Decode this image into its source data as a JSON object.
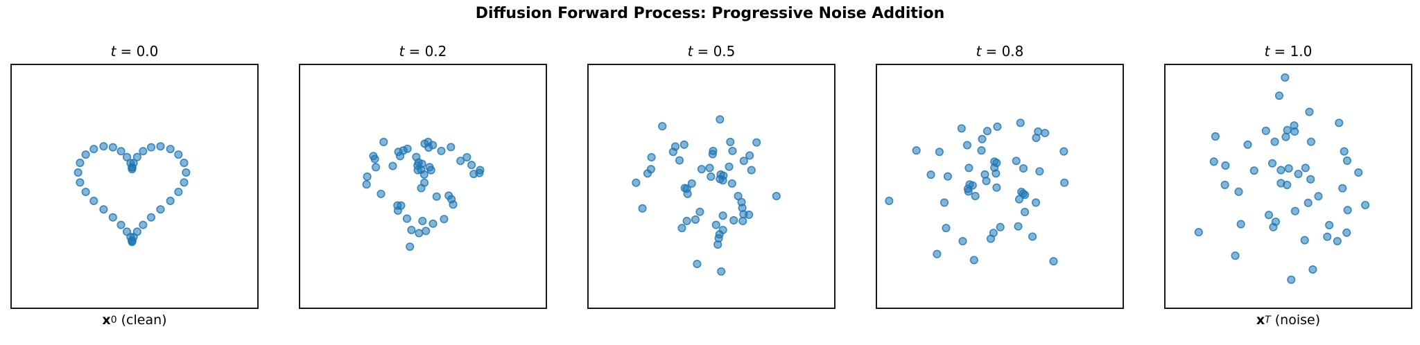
{
  "chart_data": {
    "type": "scatter",
    "title": "Diffusion Forward Process: Progressive Noise Addition",
    "marker": {
      "color": "#1f77b4",
      "fill_opacity": 0.55,
      "edge_opacity": 0.85,
      "radius_px": 5.3
    },
    "axes_style": {
      "ticks": "none",
      "grid": false,
      "spines": "all",
      "note": "point coords are fraction of axes box, origin top-left, y downward"
    },
    "subplots": [
      {
        "title_var": "t",
        "title_eq": "= 0.0",
        "xlabel": {
          "sym": "x",
          "sub": "0",
          "rest": " (clean)"
        },
        "points": [
          [
            0.49,
            0.429
          ],
          [
            0.491,
            0.422
          ],
          [
            0.496,
            0.404
          ],
          [
            0.511,
            0.379
          ],
          [
            0.535,
            0.355
          ],
          [
            0.568,
            0.339
          ],
          [
            0.606,
            0.335
          ],
          [
            0.646,
            0.346
          ],
          [
            0.679,
            0.369
          ],
          [
            0.702,
            0.403
          ],
          [
            0.71,
            0.443
          ],
          [
            0.702,
            0.484
          ],
          [
            0.679,
            0.523
          ],
          [
            0.646,
            0.56
          ],
          [
            0.606,
            0.595
          ],
          [
            0.568,
            0.628
          ],
          [
            0.535,
            0.659
          ],
          [
            0.511,
            0.687
          ],
          [
            0.496,
            0.709
          ],
          [
            0.491,
            0.724
          ],
          [
            0.49,
            0.729
          ],
          [
            0.489,
            0.724
          ],
          [
            0.484,
            0.709
          ],
          [
            0.469,
            0.687
          ],
          [
            0.445,
            0.659
          ],
          [
            0.412,
            0.628
          ],
          [
            0.374,
            0.595
          ],
          [
            0.334,
            0.56
          ],
          [
            0.301,
            0.523
          ],
          [
            0.278,
            0.484
          ],
          [
            0.27,
            0.443
          ],
          [
            0.278,
            0.403
          ],
          [
            0.301,
            0.369
          ],
          [
            0.334,
            0.346
          ],
          [
            0.374,
            0.335
          ],
          [
            0.412,
            0.339
          ],
          [
            0.445,
            0.355
          ],
          [
            0.469,
            0.379
          ],
          [
            0.484,
            0.404
          ],
          [
            0.489,
            0.422
          ]
        ]
      },
      {
        "title_var": "t",
        "title_eq": "= 0.2",
        "xlabel": null,
        "points": [
          [
            0.34,
            0.317
          ],
          [
            0.507,
            0.324
          ],
          [
            0.521,
            0.317
          ],
          [
            0.523,
            0.34
          ],
          [
            0.54,
            0.33
          ],
          [
            0.437,
            0.345
          ],
          [
            0.42,
            0.352
          ],
          [
            0.4,
            0.358
          ],
          [
            0.575,
            0.354
          ],
          [
            0.614,
            0.338
          ],
          [
            0.407,
            0.375
          ],
          [
            0.473,
            0.379
          ],
          [
            0.679,
            0.38
          ],
          [
            0.298,
            0.375
          ],
          [
            0.304,
            0.387
          ],
          [
            0.653,
            0.395
          ],
          [
            0.482,
            0.401
          ],
          [
            0.478,
            0.414
          ],
          [
            0.496,
            0.407
          ],
          [
            0.698,
            0.412
          ],
          [
            0.308,
            0.421
          ],
          [
            0.377,
            0.416
          ],
          [
            0.479,
            0.433
          ],
          [
            0.493,
            0.431
          ],
          [
            0.527,
            0.421
          ],
          [
            0.533,
            0.433
          ],
          [
            0.733,
            0.433
          ],
          [
            0.707,
            0.449
          ],
          [
            0.73,
            0.445
          ],
          [
            0.505,
            0.451
          ],
          [
            0.273,
            0.46
          ],
          [
            0.27,
            0.492
          ],
          [
            0.506,
            0.485
          ],
          [
            0.493,
            0.507
          ],
          [
            0.329,
            0.531
          ],
          [
            0.556,
            0.542
          ],
          [
            0.605,
            0.538
          ],
          [
            0.616,
            0.553
          ],
          [
            0.623,
            0.575
          ],
          [
            0.396,
            0.579
          ],
          [
            0.411,
            0.579
          ],
          [
            0.398,
            0.6
          ],
          [
            0.435,
            0.633
          ],
          [
            0.498,
            0.643
          ],
          [
            0.586,
            0.635
          ],
          [
            0.541,
            0.654
          ],
          [
            0.453,
            0.68
          ],
          [
            0.484,
            0.693
          ],
          [
            0.512,
            0.684
          ],
          [
            0.447,
            0.749
          ]
        ]
      },
      {
        "title_var": "t",
        "title_eq": "= 0.5",
        "xlabel": null,
        "points": [
          [
            0.535,
            0.224
          ],
          [
            0.3,
            0.252
          ],
          [
            0.577,
            0.317
          ],
          [
            0.684,
            0.319
          ],
          [
            0.353,
            0.336
          ],
          [
            0.389,
            0.328
          ],
          [
            0.344,
            0.358
          ],
          [
            0.507,
            0.354
          ],
          [
            0.505,
            0.367
          ],
          [
            0.586,
            0.354
          ],
          [
            0.256,
            0.38
          ],
          [
            0.37,
            0.393
          ],
          [
            0.656,
            0.373
          ],
          [
            0.632,
            0.395
          ],
          [
            0.254,
            0.429
          ],
          [
            0.24,
            0.447
          ],
          [
            0.46,
            0.429
          ],
          [
            0.493,
            0.424
          ],
          [
            0.572,
            0.419
          ],
          [
            0.663,
            0.433
          ],
          [
            0.498,
            0.46
          ],
          [
            0.538,
            0.451
          ],
          [
            0.549,
            0.456
          ],
          [
            0.535,
            0.47
          ],
          [
            0.547,
            0.475
          ],
          [
            0.193,
            0.485
          ],
          [
            0.584,
            0.488
          ],
          [
            0.42,
            0.488
          ],
          [
            0.392,
            0.507
          ],
          [
            0.4,
            0.51
          ],
          [
            0.403,
            0.531
          ],
          [
            0.609,
            0.54
          ],
          [
            0.765,
            0.54
          ],
          [
            0.623,
            0.565
          ],
          [
            0.219,
            0.591
          ],
          [
            0.626,
            0.589
          ],
          [
            0.453,
            0.605
          ],
          [
            0.631,
            0.615
          ],
          [
            0.653,
            0.617
          ],
          [
            0.547,
            0.621
          ],
          [
            0.435,
            0.637
          ],
          [
            0.591,
            0.64
          ],
          [
            0.4,
            0.643
          ],
          [
            0.628,
            0.643
          ],
          [
            0.519,
            0.659
          ],
          [
            0.38,
            0.672
          ],
          [
            0.547,
            0.68
          ],
          [
            0.533,
            0.698
          ],
          [
            0.53,
            0.714
          ],
          [
            0.526,
            0.74
          ],
          [
            0.442,
            0.82
          ],
          [
            0.54,
            0.851
          ]
        ]
      },
      {
        "title_var": "t",
        "title_eq": "= 0.8",
        "xlabel": null,
        "points": [
          [
            0.584,
            0.238
          ],
          [
            0.344,
            0.261
          ],
          [
            0.49,
            0.254
          ],
          [
            0.449,
            0.272
          ],
          [
            0.656,
            0.274
          ],
          [
            0.684,
            0.28
          ],
          [
            0.648,
            0.3
          ],
          [
            0.428,
            0.305
          ],
          [
            0.367,
            0.33
          ],
          [
            0.16,
            0.352
          ],
          [
            0.254,
            0.358
          ],
          [
            0.425,
            0.352
          ],
          [
            0.761,
            0.356
          ],
          [
            0.478,
            0.398
          ],
          [
            0.487,
            0.403
          ],
          [
            0.567,
            0.395
          ],
          [
            0.374,
            0.424
          ],
          [
            0.478,
            0.423
          ],
          [
            0.596,
            0.426
          ],
          [
            0.484,
            0.447
          ],
          [
            0.439,
            0.451
          ],
          [
            0.662,
            0.438
          ],
          [
            0.219,
            0.452
          ],
          [
            0.288,
            0.459
          ],
          [
            0.445,
            0.478
          ],
          [
            0.763,
            0.485
          ],
          [
            0.377,
            0.492
          ],
          [
            0.389,
            0.496
          ],
          [
            0.37,
            0.51
          ],
          [
            0.372,
            0.521
          ],
          [
            0.487,
            0.505
          ],
          [
            0.4,
            0.54
          ],
          [
            0.588,
            0.523
          ],
          [
            0.595,
            0.53
          ],
          [
            0.602,
            0.535
          ],
          [
            0.579,
            0.553
          ],
          [
            0.049,
            0.56
          ],
          [
            0.274,
            0.567
          ],
          [
            0.647,
            0.567
          ],
          [
            0.602,
            0.606
          ],
          [
            0.281,
            0.672
          ],
          [
            0.502,
            0.668
          ],
          [
            0.575,
            0.665
          ],
          [
            0.474,
            0.692
          ],
          [
            0.633,
            0.707
          ],
          [
            0.463,
            0.716
          ],
          [
            0.349,
            0.726
          ],
          [
            0.244,
            0.779
          ],
          [
            0.395,
            0.804
          ],
          [
            0.719,
            0.809
          ]
        ]
      },
      {
        "title_var": "t",
        "title_eq": "= 1.0",
        "xlabel": {
          "sym": "x",
          "sub": "T",
          "rest": " (noise)"
        },
        "points": [
          [
            0.487,
            0.051
          ],
          [
            0.463,
            0.126
          ],
          [
            0.586,
            0.193
          ],
          [
            0.707,
            0.238
          ],
          [
            0.524,
            0.249
          ],
          [
            0.496,
            0.268
          ],
          [
            0.526,
            0.274
          ],
          [
            0.409,
            0.271
          ],
          [
            0.49,
            0.296
          ],
          [
            0.203,
            0.294
          ],
          [
            0.445,
            0.316
          ],
          [
            0.593,
            0.316
          ],
          [
            0.335,
            0.328
          ],
          [
            0.728,
            0.356
          ],
          [
            0.197,
            0.398
          ],
          [
            0.74,
            0.394
          ],
          [
            0.244,
            0.414
          ],
          [
            0.435,
            0.405
          ],
          [
            0.361,
            0.435
          ],
          [
            0.47,
            0.433
          ],
          [
            0.502,
            0.426
          ],
          [
            0.57,
            0.424
          ],
          [
            0.541,
            0.449
          ],
          [
            0.786,
            0.443
          ],
          [
            0.591,
            0.471
          ],
          [
            0.242,
            0.494
          ],
          [
            0.47,
            0.487
          ],
          [
            0.495,
            0.494
          ],
          [
            0.721,
            0.508
          ],
          [
            0.298,
            0.522
          ],
          [
            0.623,
            0.541
          ],
          [
            0.581,
            0.568
          ],
          [
            0.742,
            0.598
          ],
          [
            0.814,
            0.577
          ],
          [
            0.528,
            0.602
          ],
          [
            0.421,
            0.618
          ],
          [
            0.307,
            0.656
          ],
          [
            0.449,
            0.646
          ],
          [
            0.439,
            0.668
          ],
          [
            0.667,
            0.66
          ],
          [
            0.135,
            0.689
          ],
          [
            0.738,
            0.691
          ],
          [
            0.659,
            0.708
          ],
          [
            0.567,
            0.722
          ],
          [
            0.7,
            0.726
          ],
          [
            0.284,
            0.786
          ],
          [
            0.6,
            0.843
          ],
          [
            0.512,
            0.885
          ]
        ]
      }
    ]
  }
}
